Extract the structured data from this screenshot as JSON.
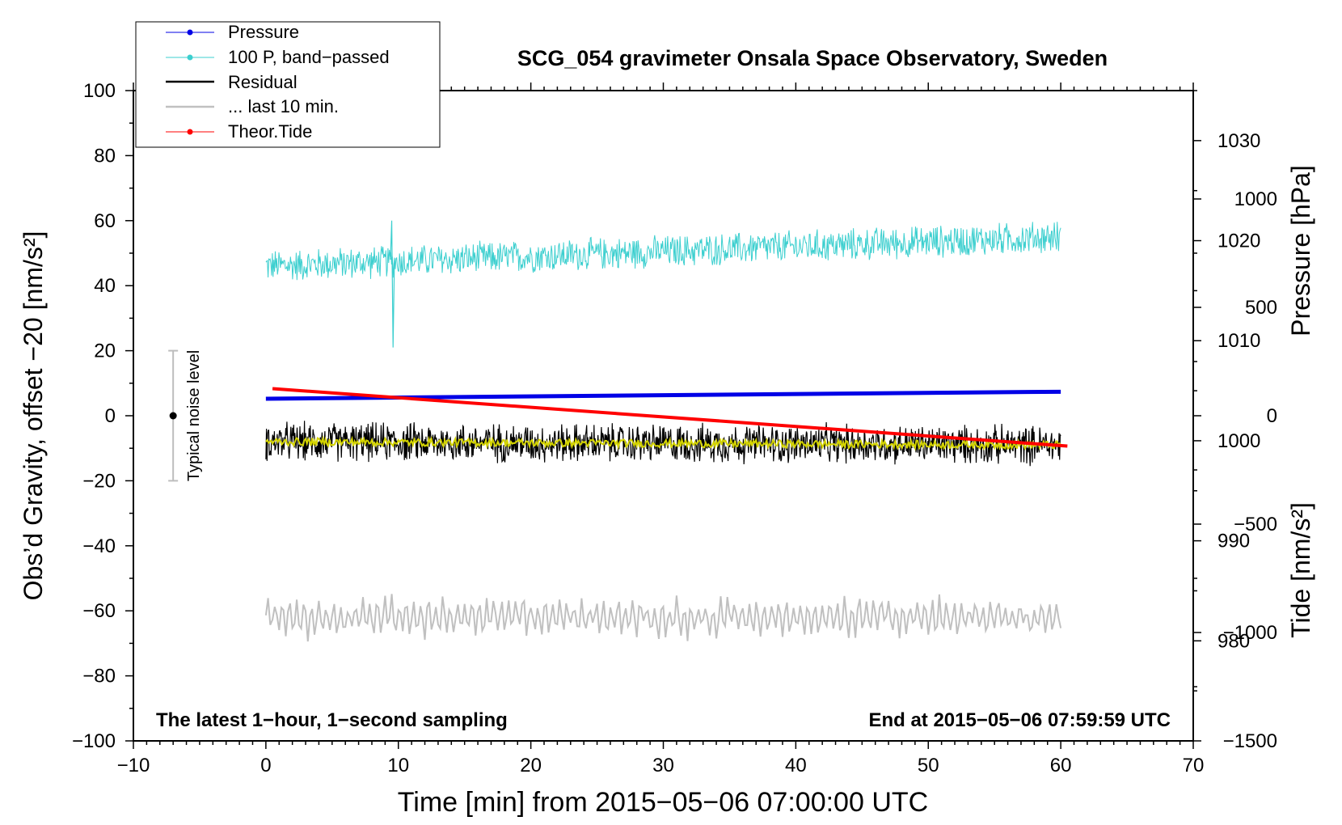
{
  "chart_data": {
    "type": "line",
    "title": "SCG_054 gravimeter Onsala Space Observatory, Sweden",
    "xlabel": "Time [min] from 2015−05−06 07:00:00 UTC",
    "ylabel_left": "Obs’d Gravity, offset −20 [nm/s²]",
    "ylabel_right_top": "Pressure [hPa]",
    "ylabel_right_bottom": "Tide [nm/s²]",
    "xlim": [
      -10,
      70
    ],
    "ylim_left": [
      -100,
      100
    ],
    "ylim_pressure": [
      970,
      1035
    ],
    "ylim_tide": [
      -1500,
      1500
    ],
    "x_ticks": [
      "−10",
      "0",
      "10",
      "20",
      "30",
      "40",
      "50",
      "60",
      "70"
    ],
    "x_tick_values": [
      -10,
      0,
      10,
      20,
      30,
      40,
      50,
      60,
      70
    ],
    "y_left_ticks": [
      "100",
      "80",
      "60",
      "40",
      "20",
      "0",
      "−20",
      "−40",
      "−60",
      "−80",
      "−100"
    ],
    "y_left_tick_values": [
      100,
      80,
      60,
      40,
      20,
      0,
      -20,
      -40,
      -60,
      -80,
      -100
    ],
    "pressure_ticks": [
      "1030",
      "1020",
      "1010",
      "1000",
      "990",
      "980"
    ],
    "pressure_tick_values": [
      1030,
      1020,
      1010,
      1000,
      990,
      980
    ],
    "tide_ticks": [
      "1000",
      "500",
      "0",
      "−500",
      "−1000",
      "−1500"
    ],
    "tide_tick_values": [
      1000,
      500,
      0,
      -500,
      -1000,
      -1500
    ],
    "series": [
      {
        "name": "Pressure",
        "color": "#0000e6",
        "axis": "pressure",
        "x": [
          0,
          60
        ],
        "values": [
          1004.2,
          1004.9
        ]
      },
      {
        "name": "100 P, band−passed",
        "color": "#3ccfcf",
        "axis": "left",
        "baseline_x": [
          0,
          60
        ],
        "baseline_values": [
          46,
          55
        ],
        "noise_amplitude": 4
      },
      {
        "name": "Residual",
        "color": "#000000",
        "axis": "left",
        "baseline_x": [
          0,
          60
        ],
        "baseline_values": [
          -8,
          -9
        ],
        "noise_amplitude": 5
      },
      {
        "name": "... last 10 min.",
        "color": "#c0c0c0",
        "axis": "left",
        "baseline_x": [
          0,
          60
        ],
        "baseline_values": [
          -62,
          -62
        ],
        "noise_amplitude": 5
      },
      {
        "name": "Theor.Tide",
        "color": "#ff0000",
        "axis": "tide",
        "x": [
          0.5,
          60.5
        ],
        "values": [
          125,
          -140
        ]
      }
    ],
    "smoothed_color": "#d4d400",
    "noise_bar": {
      "label": "Typical noise level",
      "x": -7,
      "center": 0,
      "low": -20,
      "high": 20
    },
    "annotation_left": "The latest 1−hour, 1−second sampling",
    "annotation_right": "End at 2015−05−06 07:59:59 UTC",
    "legend_position": "top-left"
  }
}
